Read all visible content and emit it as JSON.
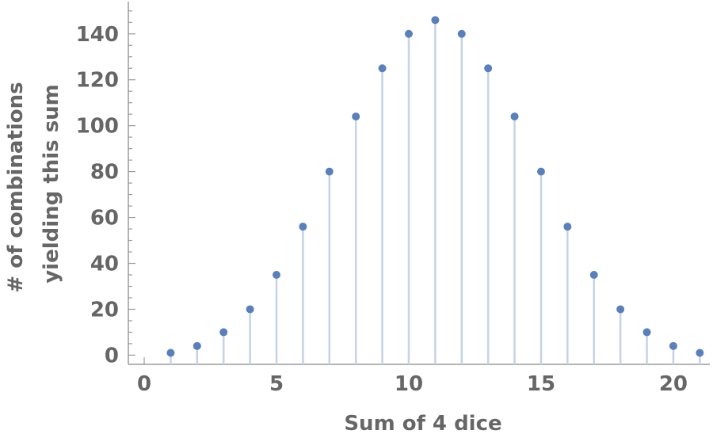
{
  "chart_data": {
    "type": "scatter",
    "style": "stem",
    "title": "",
    "xlabel": "Sum of 4 dice",
    "ylabel_lines": [
      "# of combinations",
      "yielding this sum"
    ],
    "x": [
      1,
      2,
      3,
      4,
      5,
      6,
      7,
      8,
      9,
      10,
      11,
      12,
      13,
      14,
      15,
      16,
      17,
      18,
      19,
      20,
      21
    ],
    "y": [
      1,
      4,
      10,
      20,
      35,
      56,
      80,
      104,
      125,
      140,
      146,
      140,
      125,
      104,
      80,
      56,
      35,
      20,
      10,
      4,
      1
    ],
    "xlim": [
      -0.6,
      21.2
    ],
    "ylim": [
      -4,
      152
    ],
    "x_ticks": [
      0,
      5,
      10,
      15,
      20
    ],
    "y_ticks": [
      0,
      20,
      40,
      60,
      80,
      100,
      120,
      140
    ],
    "x_ticks_labeled": true,
    "y_ticks_labeled": true,
    "grid": false,
    "colors": {
      "point": "#5b7fb8",
      "stem": "#c5d3e6",
      "axis": "#9a9a9a",
      "text": "#666666"
    }
  }
}
